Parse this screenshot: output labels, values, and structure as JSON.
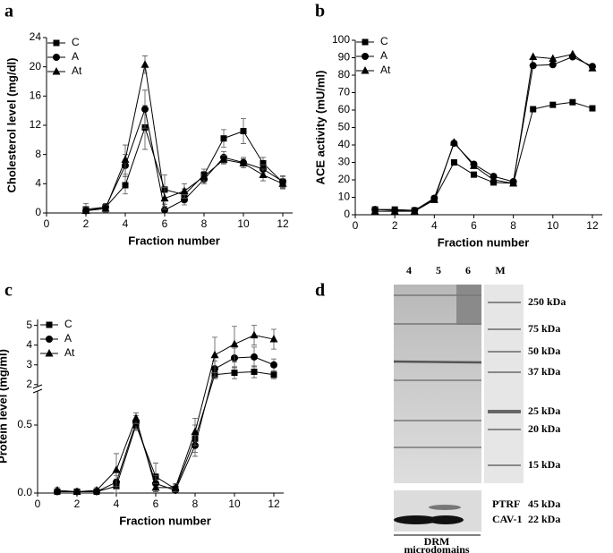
{
  "chart_data": [
    {
      "type": "line",
      "panel": "a",
      "x_label": "Fraction number",
      "y_label": "Cholesterol level (mg/dl)",
      "x": [
        2,
        3,
        4,
        5,
        6,
        7,
        8,
        9,
        10,
        11,
        12
      ],
      "xlim": [
        0,
        12.5
      ],
      "xticks": [
        0,
        2,
        4,
        6,
        8,
        10,
        12
      ],
      "ylim": [
        0,
        24
      ],
      "yticks": [
        0,
        4,
        8,
        12,
        16,
        20,
        24
      ],
      "legend": "upper left",
      "series": [
        {
          "name": "C",
          "color": "#000000",
          "marker": "square",
          "values": [
            0.5,
            0.8,
            3.8,
            11.7,
            3.2,
            2.5,
            5.2,
            10.2,
            11.2,
            6.8,
            4.2
          ],
          "errors": [
            0.8,
            0.5,
            1.2,
            3.0,
            2.0,
            0.8,
            0.8,
            1.2,
            1.7,
            0.8,
            0.8
          ]
        },
        {
          "name": "A",
          "color": "#000000",
          "marker": "circle",
          "values": [
            0.3,
            0.8,
            6.5,
            14.2,
            0.4,
            1.8,
            4.6,
            7.6,
            6.9,
            6.0,
            4.3
          ],
          "errors": [
            0.5,
            0.5,
            1.5,
            2.6,
            0.5,
            0.7,
            0.6,
            0.8,
            0.7,
            0.6,
            0.8
          ]
        },
        {
          "name": "At",
          "color": "#000000",
          "marker": "triangle",
          "values": [
            0.3,
            0.6,
            7.3,
            20.3,
            2.0,
            3.0,
            5.0,
            7.3,
            6.8,
            5.2,
            4.0
          ],
          "errors": [
            0.6,
            0.5,
            2.0,
            1.2,
            1.5,
            1.0,
            0.7,
            0.6,
            0.6,
            0.8,
            0.7
          ]
        }
      ]
    },
    {
      "type": "line",
      "panel": "b",
      "x_label": "Fraction number",
      "y_label": "ACE activity (mU/ml)",
      "x": [
        1,
        2,
        3,
        4,
        5,
        6,
        7,
        8,
        9,
        10,
        11,
        12
      ],
      "xlim": [
        0,
        12.5
      ],
      "xticks": [
        0,
        2,
        4,
        6,
        8,
        10,
        12
      ],
      "ylim": [
        0,
        100
      ],
      "yticks": [
        0,
        10,
        20,
        30,
        40,
        50,
        60,
        70,
        80,
        90,
        100
      ],
      "legend": "upper left",
      "series": [
        {
          "name": "C",
          "color": "#000000",
          "marker": "square",
          "values": [
            3,
            3,
            2.5,
            9,
            30,
            23,
            18.5,
            18,
            60.5,
            63,
            64.5,
            61
          ]
        },
        {
          "name": "A",
          "color": "#000000",
          "marker": "circle",
          "values": [
            3,
            2.5,
            2.5,
            9.5,
            41,
            29,
            22,
            19,
            85.5,
            86,
            90.5,
            85
          ]
        },
        {
          "name": "At",
          "color": "#000000",
          "marker": "triangle",
          "values": [
            2,
            2,
            2,
            8.5,
            41.5,
            28,
            20,
            18,
            90.5,
            89.5,
            92,
            84
          ]
        }
      ]
    },
    {
      "type": "broken-line",
      "panel": "c",
      "x_label": "Fraction number",
      "y_label": "Protein level (mg/ml)",
      "x": [
        1,
        2,
        3,
        4,
        5,
        6,
        7,
        8,
        9,
        10,
        11,
        12
      ],
      "xlim": [
        0,
        12.5
      ],
      "xticks": [
        0,
        2,
        4,
        6,
        8,
        10,
        12
      ],
      "ylim_lower": [
        0,
        0.75
      ],
      "ylim_upper": [
        1.9,
        5.3
      ],
      "yticks": [
        {
          "value": 0,
          "label": "0.0"
        },
        0.5,
        2,
        3,
        4,
        5
      ],
      "legend": "upper left",
      "series": [
        {
          "name": "C",
          "color": "#000000",
          "marker": "square",
          "values": [
            0.01,
            0.01,
            0.01,
            0.05,
            0.5,
            0.12,
            0.03,
            0.4,
            2.5,
            2.6,
            2.65,
            2.5
          ],
          "errors": [
            0.02,
            0.01,
            0.01,
            0.05,
            0.04,
            0.1,
            0.03,
            0.1,
            0.2,
            0.3,
            0.3,
            0.2
          ]
        },
        {
          "name": "A",
          "color": "#000000",
          "marker": "circle",
          "values": [
            0.01,
            0.01,
            0.01,
            0.08,
            0.52,
            0.07,
            0.02,
            0.35,
            2.8,
            3.35,
            3.4,
            3.0
          ],
          "errors": [
            0.02,
            0.01,
            0.01,
            0.05,
            0.05,
            0.06,
            0.02,
            0.08,
            0.4,
            0.5,
            0.5,
            0.3
          ]
        },
        {
          "name": "At",
          "color": "#000000",
          "marker": "triangle",
          "values": [
            0.02,
            0.01,
            0.02,
            0.17,
            0.55,
            0.04,
            0.04,
            0.45,
            3.5,
            4.05,
            4.5,
            4.3
          ],
          "errors": [
            0.02,
            0.01,
            0.02,
            0.12,
            0.04,
            0.03,
            0.03,
            0.1,
            0.9,
            0.9,
            0.5,
            0.5
          ]
        }
      ]
    }
  ],
  "gel": {
    "panel": "d",
    "lanes": [
      "4",
      "5",
      "6",
      "M"
    ],
    "markers": [
      "250 kDa",
      "75 kDa",
      "50 kDa",
      "37 kDa",
      "25 kDa",
      "20 kDa",
      "15 kDa"
    ],
    "blot_labels": [
      {
        "protein": "PTRF",
        "size": "45 kDa"
      },
      {
        "protein": "CAV-1",
        "size": "22 kDa"
      }
    ],
    "bracket_label": [
      "DRM",
      "microdomains"
    ]
  }
}
